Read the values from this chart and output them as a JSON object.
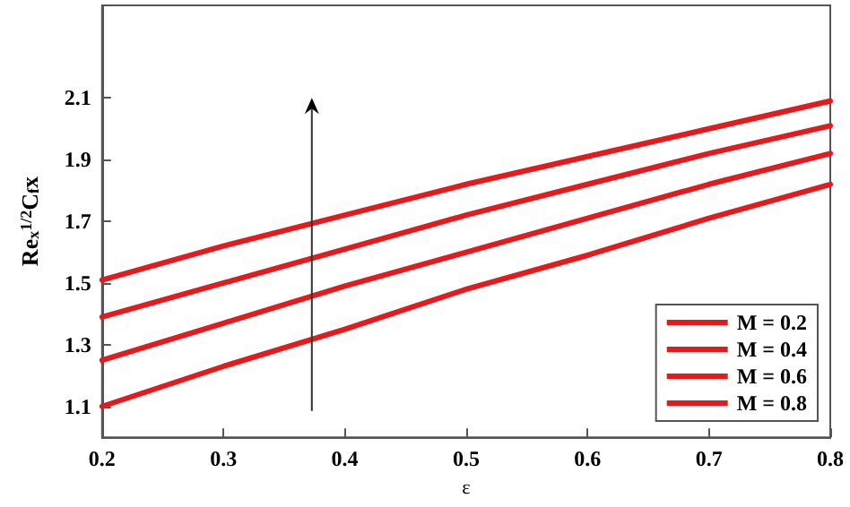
{
  "chart_data": {
    "type": "line",
    "xlabel": "ε",
    "ylabel": "Re$_{x}$$^{1/2}$C$_{f}$x",
    "x": [
      0.2,
      0.3,
      0.4,
      0.5,
      0.6,
      0.7,
      0.8
    ],
    "series": [
      {
        "name": "M = 0.2",
        "color": "#e41a1c",
        "values": [
          1.1,
          1.23,
          1.35,
          1.48,
          1.59,
          1.71,
          1.82
        ]
      },
      {
        "name": "M = 0.4",
        "color": "#e41a1c",
        "values": [
          1.25,
          1.37,
          1.49,
          1.6,
          1.71,
          1.82,
          1.92
        ]
      },
      {
        "name": "M = 0.6",
        "color": "#e41a1c",
        "values": [
          1.39,
          1.5,
          1.61,
          1.72,
          1.82,
          1.92,
          2.01
        ]
      },
      {
        "name": "M = 0.8",
        "color": "#e41a1c",
        "values": [
          1.51,
          1.62,
          1.72,
          1.82,
          1.91,
          2.0,
          2.09
        ]
      }
    ],
    "xlim": [
      0.2,
      0.8
    ],
    "xticks": [
      0.2,
      0.3,
      0.4,
      0.5,
      0.6,
      0.7,
      0.8
    ],
    "ylim": [
      1.0,
      2.4
    ],
    "yticks": [
      1.1,
      1.3,
      1.5,
      1.7,
      1.9,
      2.1
    ],
    "legend": "bottom right",
    "grid": false,
    "marker": "none",
    "line_style": "solid"
  }
}
